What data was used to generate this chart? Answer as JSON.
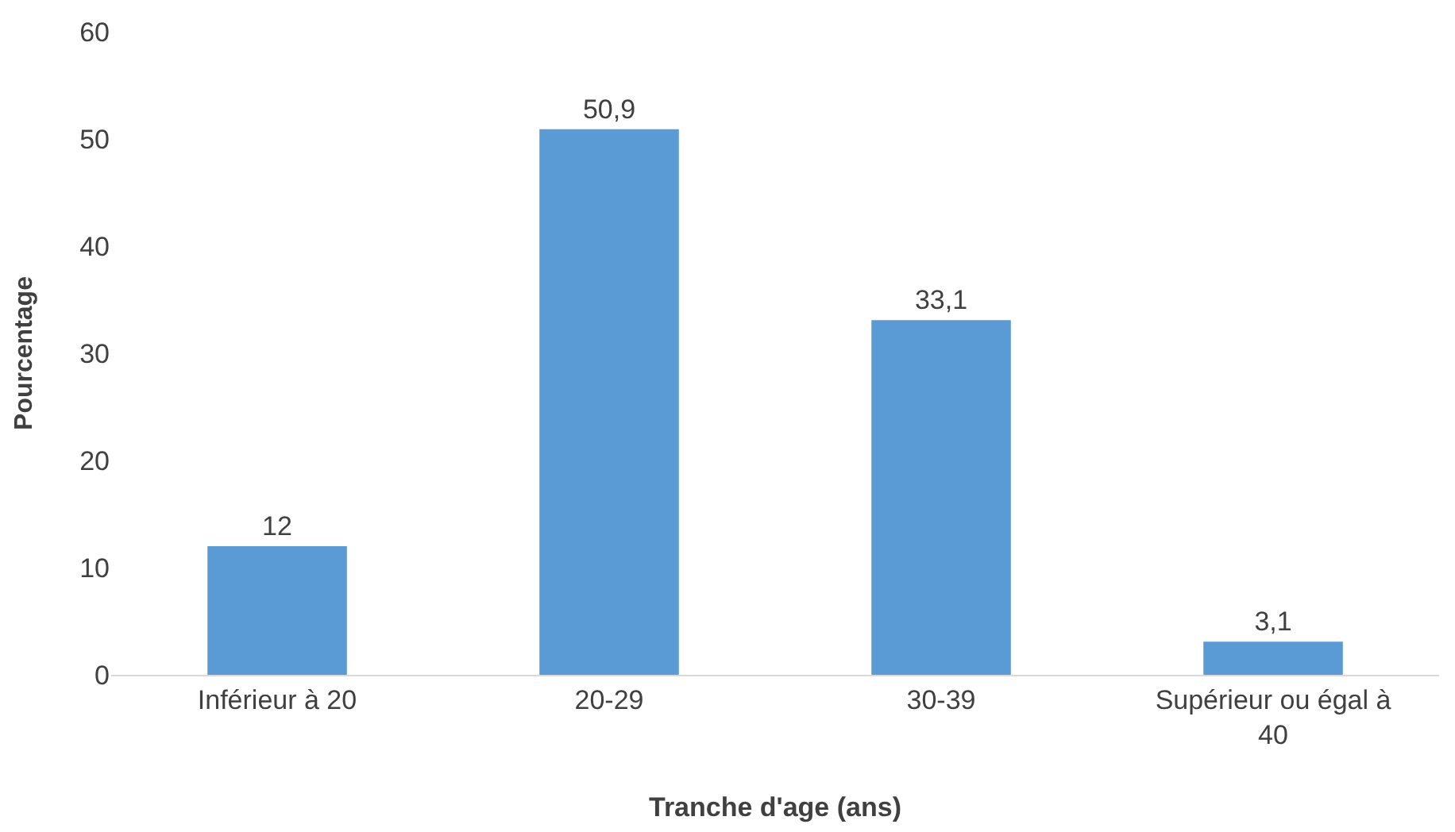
{
  "chart_data": {
    "type": "bar",
    "xlabel": "Tranche d'age (ans)",
    "ylabel": "Pourcentage",
    "categories": [
      "Inférieur à 20",
      "20-29",
      "30-39",
      "Supérieur ou égal à 40"
    ],
    "values": [
      12,
      50.9,
      33.1,
      3.1
    ],
    "value_labels": [
      "12",
      "50,9",
      "33,1",
      "3,1"
    ],
    "color": "#5b9bd5",
    "ylim": [
      0,
      60
    ],
    "yticks": [
      0,
      10,
      20,
      30,
      40,
      50,
      60
    ],
    "grid": false
  }
}
